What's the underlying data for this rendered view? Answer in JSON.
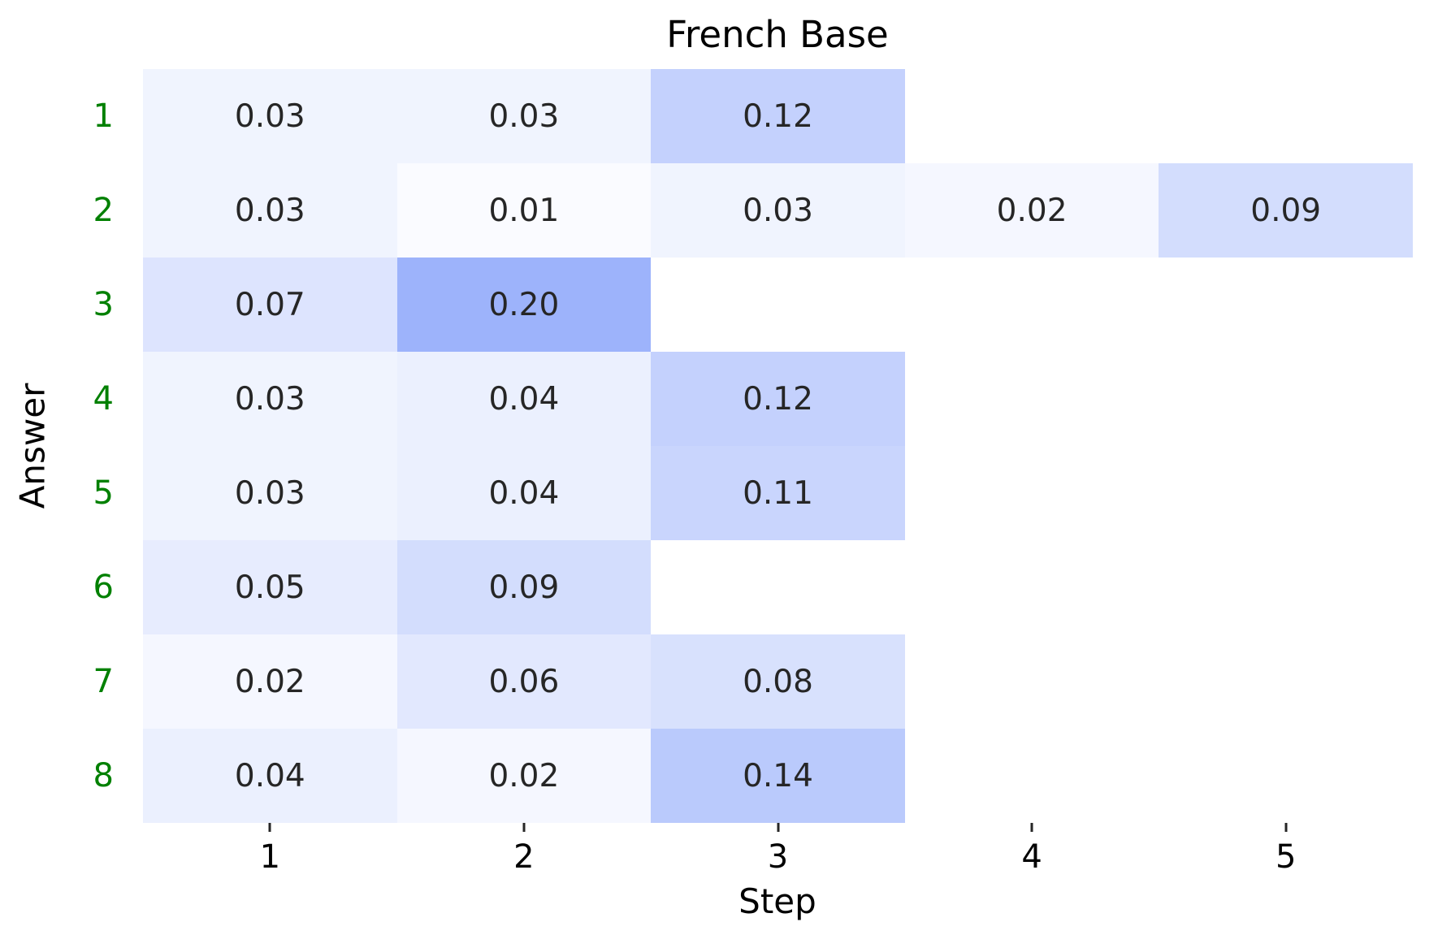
{
  "chart_data": {
    "type": "heatmap",
    "title": "French Base",
    "xlabel": "Step",
    "ylabel": "Answer",
    "x_ticks": [
      "1",
      "2",
      "3",
      "4",
      "5"
    ],
    "y_ticks": [
      "1",
      "2",
      "3",
      "4",
      "5",
      "6",
      "7",
      "8"
    ],
    "vmin": 0,
    "vmax": 0.2,
    "value_decimals": 2,
    "colors": {
      "cmap_min": "#ffffff",
      "cmap_max": "#9db3fb",
      "empty_cell": "#ffffff",
      "annotation_text": "#262626",
      "ytick_label": "#008000",
      "xtick_label": "#000000",
      "tick_mark": "#262626",
      "title_text": "#000000",
      "axis_label_text": "#000000"
    },
    "series": [
      {
        "answer": "1",
        "values": [
          0.03,
          0.03,
          0.12,
          null,
          null
        ]
      },
      {
        "answer": "2",
        "values": [
          0.03,
          0.01,
          0.03,
          0.02,
          0.09
        ]
      },
      {
        "answer": "3",
        "values": [
          0.07,
          0.2,
          null,
          null,
          null
        ]
      },
      {
        "answer": "4",
        "values": [
          0.03,
          0.04,
          0.12,
          null,
          null
        ]
      },
      {
        "answer": "5",
        "values": [
          0.03,
          0.04,
          0.11,
          null,
          null
        ]
      },
      {
        "answer": "6",
        "values": [
          0.05,
          0.09,
          null,
          null,
          null
        ]
      },
      {
        "answer": "7",
        "values": [
          0.02,
          0.06,
          0.08,
          null,
          null
        ]
      },
      {
        "answer": "8",
        "values": [
          0.04,
          0.02,
          0.14,
          null,
          null
        ]
      }
    ]
  }
}
